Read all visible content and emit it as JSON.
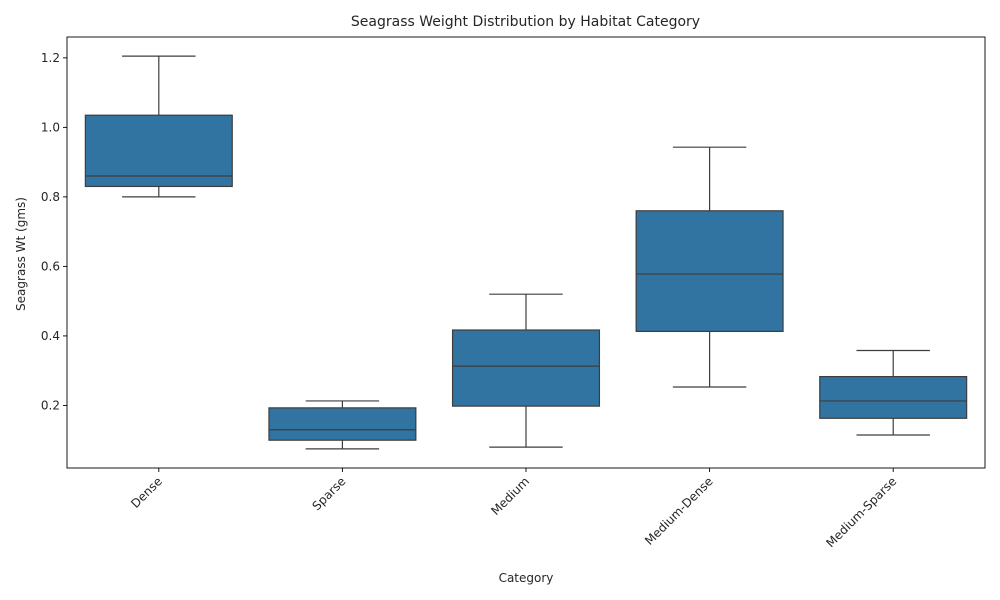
{
  "chart_data": {
    "type": "box",
    "title": "Seagrass Weight Distribution by Habitat Category",
    "xlabel": "Category",
    "ylabel": "Seagrass Wt (gms)",
    "ylim": [
      0.02,
      1.26
    ],
    "yticks": [
      0.2,
      0.4,
      0.6,
      0.8,
      1.0,
      1.2
    ],
    "ytick_labels": [
      "0.2",
      "0.4",
      "0.6",
      "0.8",
      "1.0",
      "1.2"
    ],
    "grid": false,
    "box_color": "#3274a1",
    "line_color": "#3d3d3d",
    "categories": [
      "Dense",
      "Sparse",
      "Medium",
      "Medium-Dense",
      "Medium-Sparse"
    ],
    "boxes": [
      {
        "category": "Dense",
        "whisker_low": 0.8,
        "q1": 0.83,
        "median": 0.86,
        "q3": 1.035,
        "whisker_high": 1.205
      },
      {
        "category": "Sparse",
        "whisker_low": 0.075,
        "q1": 0.1,
        "median": 0.13,
        "q3": 0.193,
        "whisker_high": 0.213
      },
      {
        "category": "Medium",
        "whisker_low": 0.08,
        "q1": 0.198,
        "median": 0.313,
        "q3": 0.417,
        "whisker_high": 0.52
      },
      {
        "category": "Medium-Dense",
        "whisker_low": 0.253,
        "q1": 0.413,
        "median": 0.578,
        "q3": 0.76,
        "whisker_high": 0.943
      },
      {
        "category": "Medium-Sparse",
        "whisker_low": 0.115,
        "q1": 0.163,
        "median": 0.213,
        "q3": 0.283,
        "whisker_high": 0.358
      }
    ]
  }
}
